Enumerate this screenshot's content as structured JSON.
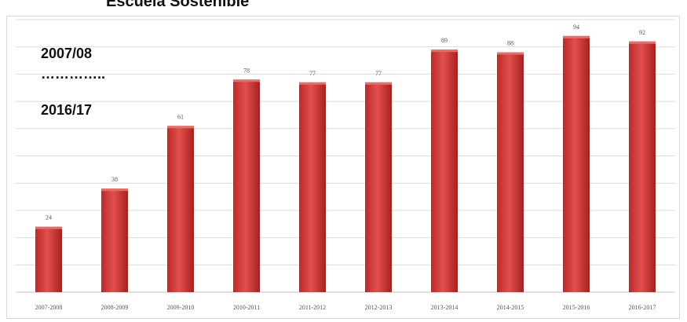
{
  "page": {
    "title_fragment": "Escuela Sostenible",
    "overlay_lines": [
      "2007/08",
      "…………..",
      "2016/17"
    ]
  },
  "chart_data": {
    "type": "bar",
    "title": "Escuela Sostenible",
    "categories": [
      "2007-2008",
      "2008-2009",
      "2009-2010",
      "2010-2011",
      "2011-2012",
      "2012-2013",
      "2013-2014",
      "2014-2015",
      "2015-2016",
      "2016-2017"
    ],
    "values": [
      24,
      38,
      61,
      78,
      77,
      77,
      89,
      88,
      94,
      92
    ],
    "xlabel": "",
    "ylabel": "",
    "ylim": [
      0,
      100
    ],
    "grid": true,
    "legend": "none",
    "bar_color": "#d23a38"
  }
}
